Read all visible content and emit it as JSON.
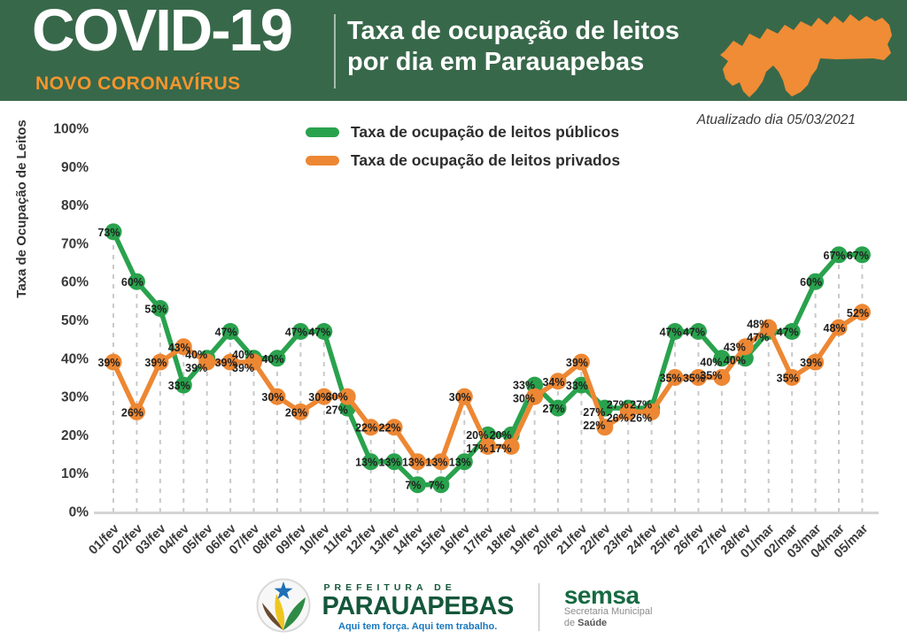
{
  "header": {
    "title": "COVID-19",
    "subtitle": "NOVO CORONAVÍRUS",
    "chart_title_line1": "Taxa de ocupação de leitos",
    "chart_title_line2": "por dia em Parauapebas",
    "updated": "Atualizado dia 05/03/2021",
    "bg_color": "#38684a",
    "accent_orange": "#f5952d",
    "map_color": "#ef8c35"
  },
  "chart_data": {
    "type": "line",
    "title": "Taxa de ocupação de leitos por dia em Parauapebas",
    "ylabel": "Taxa de Ocupação de Leitos",
    "xlabel": "",
    "ylim": [
      0,
      100
    ],
    "ytick_step": 10,
    "ytick_labels": [
      "100%",
      "90%",
      "80%",
      "70%",
      "60%",
      "50%",
      "40%",
      "30%",
      "20%",
      "10%",
      "0%"
    ],
    "grid": "vertical-dashed",
    "legend_position": "top-center",
    "point_labels": "percent",
    "categories": [
      "01/fev",
      "02/fev",
      "03/fev",
      "04/fev",
      "05/fev",
      "06/fev",
      "07/fev",
      "08/fev",
      "09/fev",
      "10/fev",
      "11/fev",
      "12/fev",
      "13/fev",
      "14/fev",
      "15/fev",
      "16/fev",
      "17/fev",
      "18/fev",
      "19/fev",
      "20/fev",
      "21/fev",
      "22/fev",
      "23/fev",
      "24/fev",
      "25/fev",
      "26/fev",
      "27/fev",
      "28/fev",
      "01/mar",
      "02/mar",
      "03/mar",
      "04/mar",
      "05/mar"
    ],
    "series": [
      {
        "name": "Taxa de ocupação de leitos públicos",
        "color": "#29a24d",
        "values": [
          73,
          60,
          53,
          33,
          40,
          47,
          40,
          40,
          47,
          47,
          27,
          13,
          13,
          7,
          7,
          13,
          20,
          20,
          33,
          27,
          33,
          27,
          27,
          27,
          47,
          47,
          40,
          40,
          47,
          47,
          60,
          67,
          67
        ]
      },
      {
        "name": "Taxa de ocupação de leitos privados",
        "color": "#ed8733",
        "values": [
          39,
          26,
          39,
          43,
          39,
          39,
          39,
          30,
          26,
          30,
          30,
          22,
          22,
          13,
          13,
          30,
          17,
          17,
          30,
          34,
          39,
          22,
          26,
          26,
          35,
          35,
          35,
          43,
          48,
          35,
          39,
          48,
          52
        ]
      }
    ]
  },
  "footer": {
    "prefeitura_top": "PREFEITURA DE",
    "prefeitura_name": "PARAUAPEBAS",
    "tagline": "Aqui tem força. Aqui tem trabalho.",
    "semsa": "semsa",
    "semsa_line1": "Secretaria Municipal",
    "semsa_line2_normal": "de",
    "semsa_line2_bold": "Saúde"
  }
}
